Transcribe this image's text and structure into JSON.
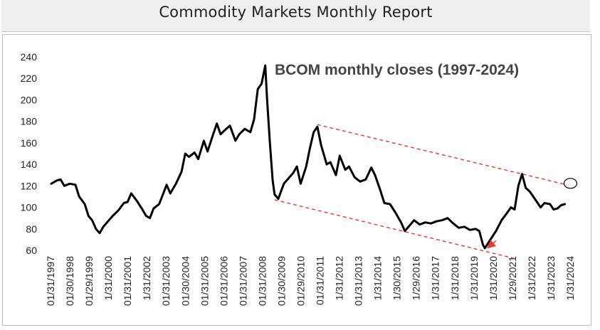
{
  "header": {
    "title": "Commodity Markets Monthly Report"
  },
  "chart_data": {
    "type": "line",
    "title": "BCOM monthly closes (1997-2024)",
    "xlabel": "",
    "ylabel": "",
    "ylim": [
      60,
      240
    ],
    "yticks": [
      60,
      80,
      100,
      120,
      140,
      160,
      180,
      200,
      220,
      240
    ],
    "grid": false,
    "x_tick_labels": [
      "01/31/1997",
      "01/30/1998",
      "01/29/1999",
      "1/31/2000",
      "01/31/2001",
      "1/31/2002",
      "01/31/2003",
      "01/30/2004",
      "01/31/2005",
      "01/31/2006",
      "01/31/2007",
      "01/31/2008",
      "01/30/2009",
      "01/29/2010",
      "01/31/2011",
      "1/31/2012",
      "01/31/2013",
      "1/31/2014",
      "1/30/2015",
      "1/29/2016",
      "1/31/2017",
      "1/31/2018",
      "1/31/2019",
      "1/31/2020",
      "1/29/2021",
      "1/31/2022",
      "1/31/2023",
      "1/31/2024"
    ],
    "series": [
      {
        "color": "#000000",
        "points": [
          [
            1997.0,
            122
          ],
          [
            1997.3,
            125
          ],
          [
            1997.5,
            126
          ],
          [
            1997.7,
            120
          ],
          [
            1998.0,
            122
          ],
          [
            1998.3,
            121
          ],
          [
            1998.5,
            110
          ],
          [
            1998.8,
            103
          ],
          [
            1999.0,
            92
          ],
          [
            1999.2,
            88
          ],
          [
            1999.4,
            80
          ],
          [
            1999.6,
            76
          ],
          [
            1999.8,
            82
          ],
          [
            2000.0,
            86
          ],
          [
            2000.3,
            92
          ],
          [
            2000.6,
            97
          ],
          [
            2000.9,
            104
          ],
          [
            2001.1,
            105
          ],
          [
            2001.3,
            113
          ],
          [
            2001.6,
            106
          ],
          [
            2001.9,
            98
          ],
          [
            2002.1,
            92
          ],
          [
            2002.3,
            90
          ],
          [
            2002.5,
            99
          ],
          [
            2002.8,
            103
          ],
          [
            2003.0,
            112
          ],
          [
            2003.2,
            121
          ],
          [
            2003.4,
            113
          ],
          [
            2003.7,
            122
          ],
          [
            2004.0,
            133
          ],
          [
            2004.2,
            150
          ],
          [
            2004.4,
            147
          ],
          [
            2004.7,
            151
          ],
          [
            2004.9,
            145
          ],
          [
            2005.2,
            162
          ],
          [
            2005.4,
            152
          ],
          [
            2005.7,
            168
          ],
          [
            2005.9,
            178
          ],
          [
            2006.1,
            168
          ],
          [
            2006.4,
            173
          ],
          [
            2006.6,
            176
          ],
          [
            2006.9,
            162
          ],
          [
            2007.1,
            168
          ],
          [
            2007.4,
            173
          ],
          [
            2007.7,
            170
          ],
          [
            2007.9,
            182
          ],
          [
            2008.1,
            210
          ],
          [
            2008.3,
            215
          ],
          [
            2008.5,
            232
          ],
          [
            2008.6,
            200
          ],
          [
            2008.75,
            160
          ],
          [
            2008.9,
            125
          ],
          [
            2009.0,
            112
          ],
          [
            2009.2,
            108
          ],
          [
            2009.5,
            122
          ],
          [
            2009.8,
            128
          ],
          [
            2010.0,
            132
          ],
          [
            2010.2,
            138
          ],
          [
            2010.4,
            122
          ],
          [
            2010.7,
            138
          ],
          [
            2010.9,
            155
          ],
          [
            2011.1,
            170
          ],
          [
            2011.3,
            175
          ],
          [
            2011.5,
            158
          ],
          [
            2011.8,
            140
          ],
          [
            2012.0,
            142
          ],
          [
            2012.3,
            130
          ],
          [
            2012.5,
            148
          ],
          [
            2012.8,
            135
          ],
          [
            2013.0,
            138
          ],
          [
            2013.3,
            128
          ],
          [
            2013.6,
            124
          ],
          [
            2013.9,
            126
          ],
          [
            2014.2,
            137
          ],
          [
            2014.4,
            130
          ],
          [
            2014.7,
            115
          ],
          [
            2014.9,
            104
          ],
          [
            2015.2,
            103
          ],
          [
            2015.5,
            95
          ],
          [
            2015.8,
            86
          ],
          [
            2016.0,
            78
          ],
          [
            2016.2,
            82
          ],
          [
            2016.5,
            88
          ],
          [
            2016.8,
            84
          ],
          [
            2017.1,
            86
          ],
          [
            2017.4,
            85
          ],
          [
            2017.7,
            87
          ],
          [
            2018.0,
            88
          ],
          [
            2018.3,
            90
          ],
          [
            2018.6,
            85
          ],
          [
            2018.9,
            81
          ],
          [
            2019.2,
            82
          ],
          [
            2019.5,
            79
          ],
          [
            2019.8,
            80
          ],
          [
            2020.0,
            78
          ],
          [
            2020.2,
            65
          ],
          [
            2020.3,
            62
          ],
          [
            2020.6,
            70
          ],
          [
            2020.9,
            78
          ],
          [
            2021.2,
            88
          ],
          [
            2021.5,
            95
          ],
          [
            2021.7,
            100
          ],
          [
            2021.9,
            98
          ],
          [
            2022.1,
            120
          ],
          [
            2022.3,
            131
          ],
          [
            2022.5,
            118
          ],
          [
            2022.7,
            115
          ],
          [
            2022.9,
            110
          ],
          [
            2023.1,
            105
          ],
          [
            2023.3,
            100
          ],
          [
            2023.5,
            104
          ],
          [
            2023.8,
            103
          ],
          [
            2024.0,
            98
          ],
          [
            2024.2,
            99
          ],
          [
            2024.4,
            102
          ],
          [
            2024.6,
            103
          ]
        ]
      }
    ],
    "trend_lines": [
      {
        "style": "dashed",
        "color": "#e53935",
        "from": [
          2011.3,
          177
        ],
        "to": [
          2024.7,
          121
        ]
      },
      {
        "style": "dashed",
        "color": "#e53935",
        "from": [
          2009.0,
          107
        ],
        "to": [
          2022.0,
          52
        ]
      }
    ],
    "annotations": [
      {
        "type": "circle",
        "at": [
          2024.9,
          121
        ],
        "color": "#000000"
      },
      {
        "type": "arrow",
        "from": [
          2020.9,
          69
        ],
        "to": [
          2020.5,
          63
        ],
        "color": "#e53935"
      }
    ]
  }
}
